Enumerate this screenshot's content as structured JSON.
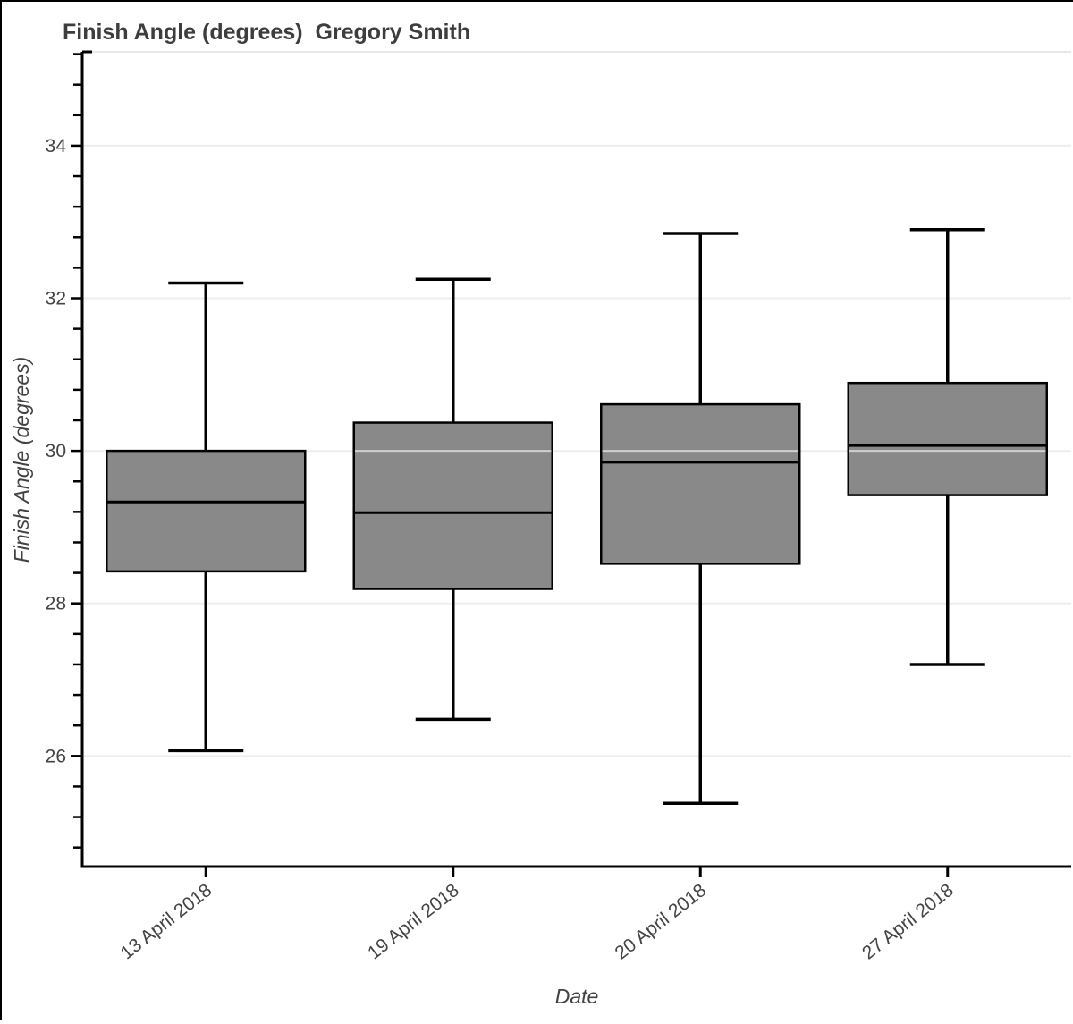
{
  "page": {
    "background": "#ffffff",
    "border_color": "#000000"
  },
  "chart_data": {
    "type": "box",
    "title": "Finish Angle (degrees)  Gregory Smith",
    "xlabel": "Date",
    "ylabel": "Finish Angle (degrees)",
    "categories": [
      "13 April 2018",
      "19 April 2018",
      "20 April 2018",
      "27 April 2018"
    ],
    "series": [
      {
        "name": "13 April 2018",
        "low": 26.07,
        "q1": 28.42,
        "median": 29.33,
        "q3": 30.0,
        "high": 32.2
      },
      {
        "name": "19 April 2018",
        "low": 26.48,
        "q1": 28.19,
        "median": 29.19,
        "q3": 30.37,
        "high": 32.25
      },
      {
        "name": "20 April 2018",
        "low": 25.38,
        "q1": 28.52,
        "median": 29.85,
        "q3": 30.61,
        "high": 32.85
      },
      {
        "name": "27 April 2018",
        "low": 27.2,
        "q1": 29.42,
        "median": 30.07,
        "q3": 30.89,
        "high": 32.9
      }
    ],
    "y_axis": {
      "tick_labels": [
        26,
        28,
        30,
        32,
        34
      ],
      "minor_tick_start": 24.8,
      "minor_tick_step": 0.4,
      "range": [
        24.55,
        35.23
      ],
      "grid": true
    },
    "x_axis": {
      "label_rotation_deg": -38
    },
    "layout": {
      "legend": "none",
      "grid_on": true
    },
    "colors": {
      "box_fill": "#898989",
      "box_border": "#000000",
      "median": "#000000",
      "whisker": "#000000",
      "grid": "#e8e8e8",
      "axis": "#000000",
      "text": "#444444",
      "title": "#3d3d3d"
    }
  }
}
